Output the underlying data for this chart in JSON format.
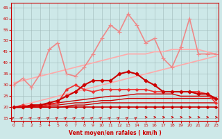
{
  "background_color": "#cde8e8",
  "grid_color": "#a0b8b8",
  "xlabel": "Vent moyen/en rafales ( km/h )",
  "ylabel_ticks": [
    15,
    20,
    25,
    30,
    35,
    40,
    45,
    50,
    55,
    60,
    65
  ],
  "x_ticks": [
    0,
    1,
    2,
    3,
    4,
    5,
    6,
    7,
    8,
    9,
    10,
    11,
    12,
    13,
    14,
    15,
    16,
    17,
    18,
    19,
    20,
    21,
    22,
    23
  ],
  "xlim": [
    0,
    23
  ],
  "ylim": [
    14,
    67
  ],
  "lines": [
    {
      "y": [
        20,
        20,
        20,
        20,
        20,
        20,
        20,
        20,
        20,
        20,
        20,
        20,
        20,
        20,
        20,
        20,
        20,
        20,
        20,
        20,
        20,
        20,
        20,
        20
      ],
      "color": "#cc0000",
      "lw": 1.2,
      "marker": "D",
      "ms": 2.0,
      "zorder": 6
    },
    {
      "y": [
        20,
        20,
        20,
        20,
        20,
        20,
        20.5,
        21,
        21,
        21.5,
        22,
        22,
        22,
        22,
        22,
        22,
        22,
        22,
        22,
        22,
        22,
        22,
        22,
        22
      ],
      "color": "#cc0000",
      "lw": 1.0,
      "marker": null,
      "ms": 0,
      "zorder": 4
    },
    {
      "y": [
        20,
        20,
        20,
        20.5,
        21,
        21,
        21.5,
        22,
        22,
        22.5,
        23,
        23,
        23.5,
        24,
        24,
        24,
        24,
        24,
        24,
        24,
        24,
        24,
        24,
        24
      ],
      "color": "#cc0000",
      "lw": 1.0,
      "marker": null,
      "ms": 0,
      "zorder": 4
    },
    {
      "y": [
        20,
        20,
        20.5,
        21,
        21.5,
        22,
        22.5,
        23,
        23.5,
        24,
        24.5,
        25,
        25,
        25.5,
        26,
        26,
        26,
        26,
        26,
        25,
        25,
        25,
        25,
        24
      ],
      "color": "#cc0000",
      "lw": 1.0,
      "marker": null,
      "ms": 0,
      "zorder": 4
    },
    {
      "y": [
        20,
        20,
        21,
        21,
        22,
        23,
        25,
        27,
        30,
        32,
        32,
        32,
        35,
        36,
        35,
        32,
        30,
        27,
        27,
        27,
        27,
        26,
        26,
        24
      ],
      "color": "#cc0000",
      "lw": 1.5,
      "marker": "D",
      "ms": 2.5,
      "zorder": 6
    },
    {
      "y": [
        20,
        21,
        20,
        20,
        21,
        22,
        28,
        30,
        28,
        27,
        28,
        28,
        28,
        28,
        28,
        28,
        27,
        27,
        27,
        27,
        27,
        27,
        26,
        22
      ],
      "color": "#ee3333",
      "lw": 1.2,
      "marker": "D",
      "ms": 2.0,
      "zorder": 5
    },
    {
      "y": [
        30,
        33,
        29,
        35,
        46,
        49,
        35,
        34,
        38,
        44,
        51,
        57,
        54,
        62,
        57,
        49,
        51,
        42,
        38,
        47,
        60,
        44,
        44,
        44
      ],
      "color": "#ee8888",
      "lw": 1.2,
      "marker": "+",
      "ms": 5,
      "zorder": 3
    },
    {
      "y": [
        31,
        32,
        33,
        34,
        35,
        36,
        37,
        38,
        39,
        40,
        41,
        42,
        43,
        44,
        44,
        44,
        45,
        45,
        46,
        46,
        46,
        46,
        45,
        44
      ],
      "color": "#ffaaaa",
      "lw": 1.2,
      "marker": null,
      "ms": 0,
      "zorder": 2
    },
    {
      "y": [
        20,
        21,
        22,
        23,
        24,
        25,
        26,
        27,
        28,
        29,
        30,
        31,
        32,
        33,
        34,
        35,
        36,
        37,
        38,
        39,
        40,
        41,
        42,
        43
      ],
      "color": "#ffaaaa",
      "lw": 1.2,
      "marker": null,
      "ms": 0,
      "zorder": 2
    }
  ],
  "font_color": "#cc0000",
  "arrow_diag_count": 14,
  "arrow_horiz_count": 10
}
